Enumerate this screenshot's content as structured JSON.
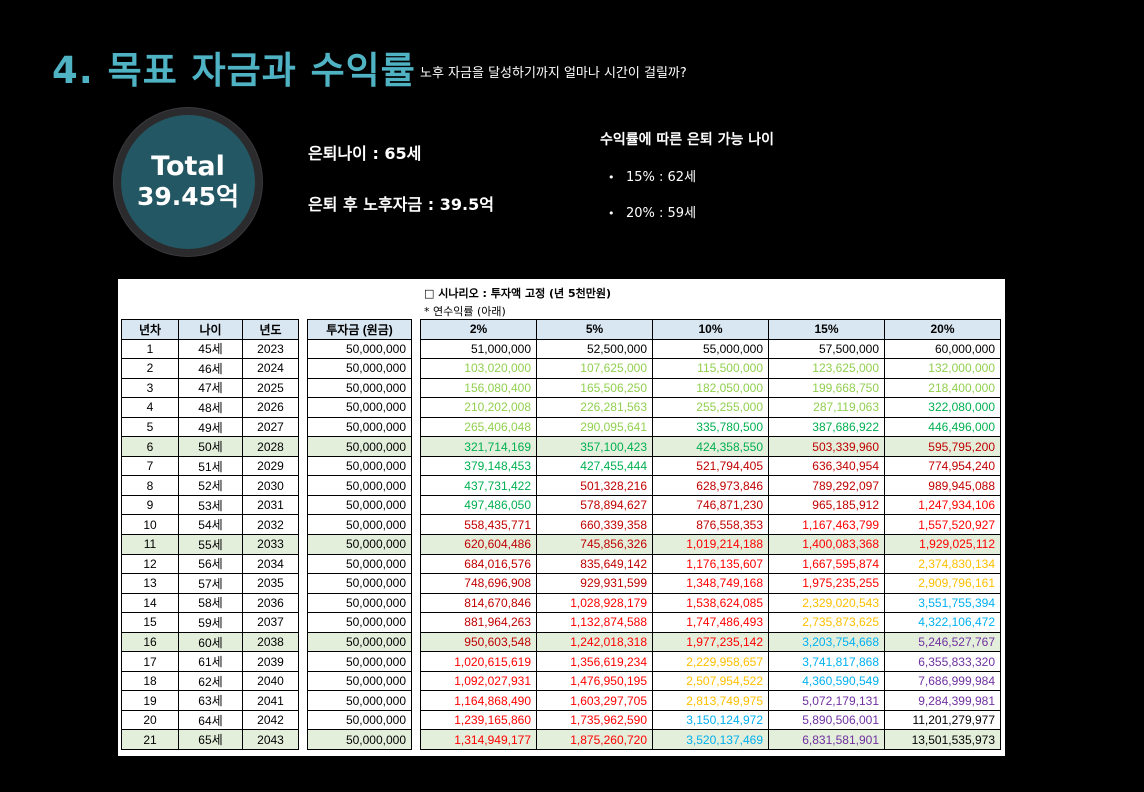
{
  "header": {
    "title": "4. 목표 자금과 수익률",
    "subtitle": "노후 자금을 달성하기까지 얼마나 시간이 걸릴까?"
  },
  "badge": {
    "line1": "Total",
    "line2": "39.45억"
  },
  "summary": {
    "retire_age": "은퇴나이 : 65세",
    "retire_fund": "은퇴 후 노후자금 : 39.5억"
  },
  "rates": {
    "heading": "수익률에 따른 은퇴 가능 나이",
    "items": [
      "15% : 62세",
      "20% : 59세"
    ]
  },
  "table": {
    "scenario": "□ 시나리오 : 투자액 고정 (년 5천만원)",
    "note": "* 연수익률 (아래)",
    "left_headers": [
      "년차",
      "나이",
      "년도"
    ],
    "invest_header": "투자금 (원금)",
    "rate_headers": [
      "2%",
      "5%",
      "10%",
      "15%",
      "20%"
    ],
    "highlight_rows": [
      5,
      10,
      15,
      20
    ],
    "colors": {
      "k0": "#000000",
      "k1": "#92d050",
      "k2": "#00b050",
      "k3": "#c00000",
      "k4": "#ff0000",
      "k5": "#ffc000",
      "k6": "#00b0f0",
      "k7": "#7030a0",
      "header_bg": "#d9e7f2",
      "highlight_bg": "#e3eedb"
    },
    "rows": [
      {
        "n": "1",
        "age": "45세",
        "year": "2023",
        "invest": "50,000,000",
        "vals": [
          "51,000,000",
          "52,500,000",
          "55,000,000",
          "57,500,000",
          "60,000,000"
        ],
        "c": [
          "k0",
          "k0",
          "k0",
          "k0",
          "k0"
        ]
      },
      {
        "n": "2",
        "age": "46세",
        "year": "2024",
        "invest": "50,000,000",
        "vals": [
          "103,020,000",
          "107,625,000",
          "115,500,000",
          "123,625,000",
          "132,000,000"
        ],
        "c": [
          "k1",
          "k1",
          "k1",
          "k1",
          "k1"
        ]
      },
      {
        "n": "3",
        "age": "47세",
        "year": "2025",
        "invest": "50,000,000",
        "vals": [
          "156,080,400",
          "165,506,250",
          "182,050,000",
          "199,668,750",
          "218,400,000"
        ],
        "c": [
          "k1",
          "k1",
          "k1",
          "k1",
          "k1"
        ]
      },
      {
        "n": "4",
        "age": "48세",
        "year": "2026",
        "invest": "50,000,000",
        "vals": [
          "210,202,008",
          "226,281,563",
          "255,255,000",
          "287,119,063",
          "322,080,000"
        ],
        "c": [
          "k1",
          "k1",
          "k1",
          "k1",
          "k2"
        ]
      },
      {
        "n": "5",
        "age": "49세",
        "year": "2027",
        "invest": "50,000,000",
        "vals": [
          "265,406,048",
          "290,095,641",
          "335,780,500",
          "387,686,922",
          "446,496,000"
        ],
        "c": [
          "k1",
          "k1",
          "k2",
          "k2",
          "k2"
        ]
      },
      {
        "n": "6",
        "age": "50세",
        "year": "2028",
        "invest": "50,000,000",
        "vals": [
          "321,714,169",
          "357,100,423",
          "424,358,550",
          "503,339,960",
          "595,795,200"
        ],
        "c": [
          "k2",
          "k2",
          "k2",
          "k3",
          "k3"
        ]
      },
      {
        "n": "7",
        "age": "51세",
        "year": "2029",
        "invest": "50,000,000",
        "vals": [
          "379,148,453",
          "427,455,444",
          "521,794,405",
          "636,340,954",
          "774,954,240"
        ],
        "c": [
          "k2",
          "k2",
          "k3",
          "k3",
          "k3"
        ]
      },
      {
        "n": "8",
        "age": "52세",
        "year": "2030",
        "invest": "50,000,000",
        "vals": [
          "437,731,422",
          "501,328,216",
          "628,973,846",
          "789,292,097",
          "989,945,088"
        ],
        "c": [
          "k2",
          "k3",
          "k3",
          "k3",
          "k3"
        ]
      },
      {
        "n": "9",
        "age": "53세",
        "year": "2031",
        "invest": "50,000,000",
        "vals": [
          "497,486,050",
          "578,894,627",
          "746,871,230",
          "965,185,912",
          "1,247,934,106"
        ],
        "c": [
          "k2",
          "k3",
          "k3",
          "k3",
          "k4"
        ]
      },
      {
        "n": "10",
        "age": "54세",
        "year": "2032",
        "invest": "50,000,000",
        "vals": [
          "558,435,771",
          "660,339,358",
          "876,558,353",
          "1,167,463,799",
          "1,557,520,927"
        ],
        "c": [
          "k3",
          "k3",
          "k3",
          "k4",
          "k4"
        ]
      },
      {
        "n": "11",
        "age": "55세",
        "year": "2033",
        "invest": "50,000,000",
        "vals": [
          "620,604,486",
          "745,856,326",
          "1,019,214,188",
          "1,400,083,368",
          "1,929,025,112"
        ],
        "c": [
          "k3",
          "k3",
          "k4",
          "k4",
          "k4"
        ]
      },
      {
        "n": "12",
        "age": "56세",
        "year": "2034",
        "invest": "50,000,000",
        "vals": [
          "684,016,576",
          "835,649,142",
          "1,176,135,607",
          "1,667,595,874",
          "2,374,830,134"
        ],
        "c": [
          "k3",
          "k3",
          "k4",
          "k4",
          "k5"
        ]
      },
      {
        "n": "13",
        "age": "57세",
        "year": "2035",
        "invest": "50,000,000",
        "vals": [
          "748,696,908",
          "929,931,599",
          "1,348,749,168",
          "1,975,235,255",
          "2,909,796,161"
        ],
        "c": [
          "k3",
          "k3",
          "k4",
          "k4",
          "k5"
        ]
      },
      {
        "n": "14",
        "age": "58세",
        "year": "2036",
        "invest": "50,000,000",
        "vals": [
          "814,670,846",
          "1,028,928,179",
          "1,538,624,085",
          "2,329,020,543",
          "3,551,755,394"
        ],
        "c": [
          "k3",
          "k4",
          "k4",
          "k5",
          "k6"
        ]
      },
      {
        "n": "15",
        "age": "59세",
        "year": "2037",
        "invest": "50,000,000",
        "vals": [
          "881,964,263",
          "1,132,874,588",
          "1,747,486,493",
          "2,735,873,625",
          "4,322,106,472"
        ],
        "c": [
          "k3",
          "k4",
          "k4",
          "k5",
          "k6"
        ]
      },
      {
        "n": "16",
        "age": "60세",
        "year": "2038",
        "invest": "50,000,000",
        "vals": [
          "950,603,548",
          "1,242,018,318",
          "1,977,235,142",
          "3,203,754,668",
          "5,246,527,767"
        ],
        "c": [
          "k3",
          "k4",
          "k4",
          "k6",
          "k7"
        ]
      },
      {
        "n": "17",
        "age": "61세",
        "year": "2039",
        "invest": "50,000,000",
        "vals": [
          "1,020,615,619",
          "1,356,619,234",
          "2,229,958,657",
          "3,741,817,868",
          "6,355,833,320"
        ],
        "c": [
          "k4",
          "k4",
          "k5",
          "k6",
          "k7"
        ]
      },
      {
        "n": "18",
        "age": "62세",
        "year": "2040",
        "invest": "50,000,000",
        "vals": [
          "1,092,027,931",
          "1,476,950,195",
          "2,507,954,522",
          "4,360,590,549",
          "7,686,999,984"
        ],
        "c": [
          "k4",
          "k4",
          "k5",
          "k6",
          "k7"
        ]
      },
      {
        "n": "19",
        "age": "63세",
        "year": "2041",
        "invest": "50,000,000",
        "vals": [
          "1,164,868,490",
          "1,603,297,705",
          "2,813,749,975",
          "5,072,179,131",
          "9,284,399,981"
        ],
        "c": [
          "k4",
          "k4",
          "k5",
          "k7",
          "k7"
        ]
      },
      {
        "n": "20",
        "age": "64세",
        "year": "2042",
        "invest": "50,000,000",
        "vals": [
          "1,239,165,860",
          "1,735,962,590",
          "3,150,124,972",
          "5,890,506,001",
          "11,201,279,977"
        ],
        "c": [
          "k4",
          "k4",
          "k6",
          "k7",
          "k0"
        ]
      },
      {
        "n": "21",
        "age": "65세",
        "year": "2043",
        "invest": "50,000,000",
        "vals": [
          "1,314,949,177",
          "1,875,260,720",
          "3,520,137,469",
          "6,831,581,901",
          "13,501,535,973"
        ],
        "c": [
          "k4",
          "k4",
          "k6",
          "k7",
          "k0"
        ]
      }
    ]
  }
}
